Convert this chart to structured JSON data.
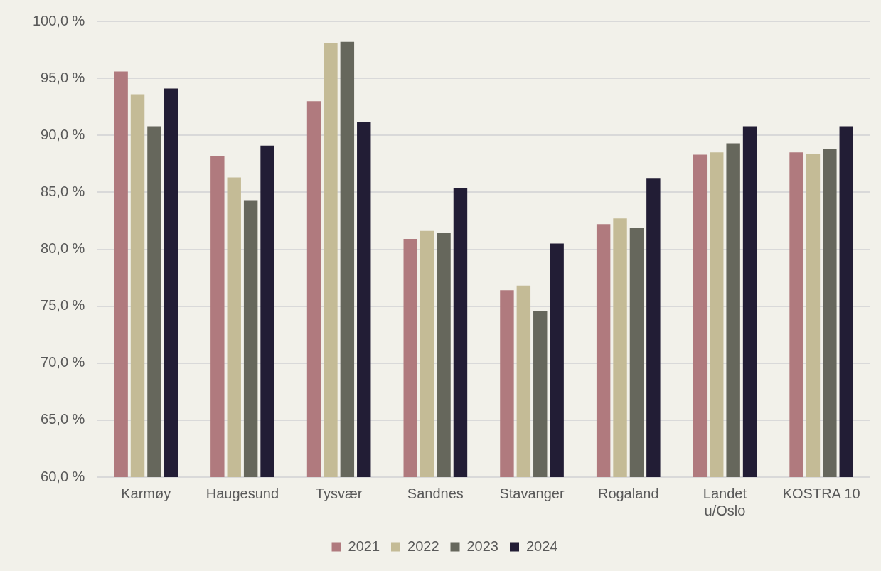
{
  "chart_data": {
    "type": "bar",
    "categories": [
      "Karmøy",
      "Haugesund",
      "Tysvær",
      "Sandnes",
      "Stavanger",
      "Rogaland",
      "Landet u/Oslo",
      "KOSTRA 10"
    ],
    "series": [
      {
        "name": "2021",
        "color": "#b07a7e",
        "values": [
          95.6,
          88.2,
          93.0,
          80.9,
          76.4,
          82.2,
          88.3,
          88.5
        ]
      },
      {
        "name": "2022",
        "color": "#c4bb96",
        "values": [
          93.6,
          86.3,
          98.1,
          81.6,
          76.8,
          82.7,
          88.5,
          88.4
        ]
      },
      {
        "name": "2023",
        "color": "#66675c",
        "values": [
          90.8,
          84.3,
          98.2,
          81.4,
          74.6,
          81.9,
          89.3,
          88.8
        ]
      },
      {
        "name": "2024",
        "color": "#221d35",
        "values": [
          94.1,
          89.1,
          91.2,
          85.4,
          80.5,
          86.2,
          90.8,
          90.8
        ]
      }
    ],
    "ylim": [
      60,
      100
    ],
    "yticks": [
      {
        "value": 60,
        "label": "60,0 %"
      },
      {
        "value": 65,
        "label": "65,0 %"
      },
      {
        "value": 70,
        "label": "70,0 %"
      },
      {
        "value": 75,
        "label": "75,0 %"
      },
      {
        "value": 80,
        "label": "80,0 %"
      },
      {
        "value": 85,
        "label": "85,0 %"
      },
      {
        "value": 90,
        "label": "90,0 %"
      },
      {
        "value": 95,
        "label": "95,0 %"
      },
      {
        "value": 100,
        "label": "100,0 %"
      }
    ],
    "grid": "y",
    "legend": "bottom"
  }
}
